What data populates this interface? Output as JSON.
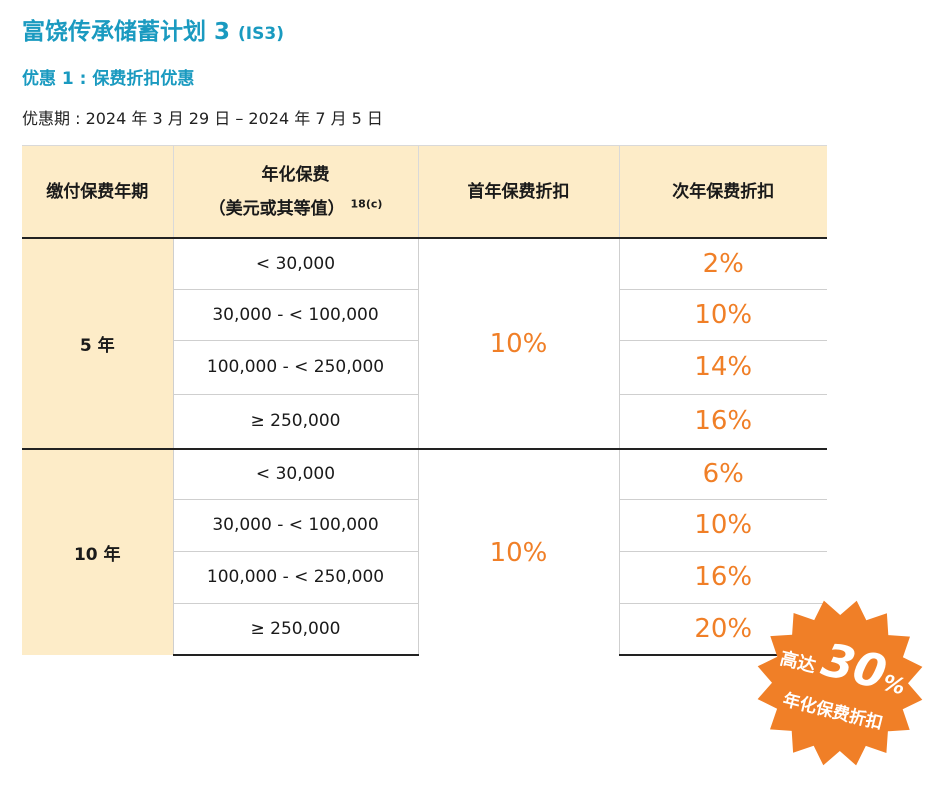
{
  "title": {
    "main": "富饶传承储蓄计划 3",
    "suffix": "(IS3)"
  },
  "offer_heading": "优惠 1 : 保费折扣优惠",
  "period": "优惠期 : 2024 年 3 月 29 日 – 2024 年 7 月 5 日",
  "table": {
    "headers": {
      "term": "缴付保费年期",
      "annual_line1": "年化保费",
      "annual_line2": "（美元或其等值）",
      "annual_note": "18(c)",
      "first_year": "首年保费折扣",
      "second_year": "次年保费折扣"
    },
    "groups": [
      {
        "term": "5 年",
        "first_year": "10%",
        "rows": [
          {
            "range": "< 30,000",
            "second_year": "2%"
          },
          {
            "range": "30,000 - < 100,000",
            "second_year": "10%"
          },
          {
            "range": "100,000 - < 250,000",
            "second_year": "14%"
          },
          {
            "range": "≥ 250,000",
            "second_year": "16%"
          }
        ]
      },
      {
        "term": "10 年",
        "first_year": "10%",
        "rows": [
          {
            "range": "< 30,000",
            "second_year": "6%"
          },
          {
            "range": "30,000 - < 100,000",
            "second_year": "10%"
          },
          {
            "range": "100,000 - < 250,000",
            "second_year": "16%"
          },
          {
            "range": "≥ 250,000",
            "second_year": "20%"
          }
        ]
      }
    ]
  },
  "badge": {
    "up_to": "高达",
    "value": "30",
    "percent": "%",
    "caption": "年化保费折扣",
    "color": "#f07f27"
  },
  "colors": {
    "title": "#1a9ac0",
    "header_bg": "#fdecc8",
    "discount": "#f07f27"
  }
}
